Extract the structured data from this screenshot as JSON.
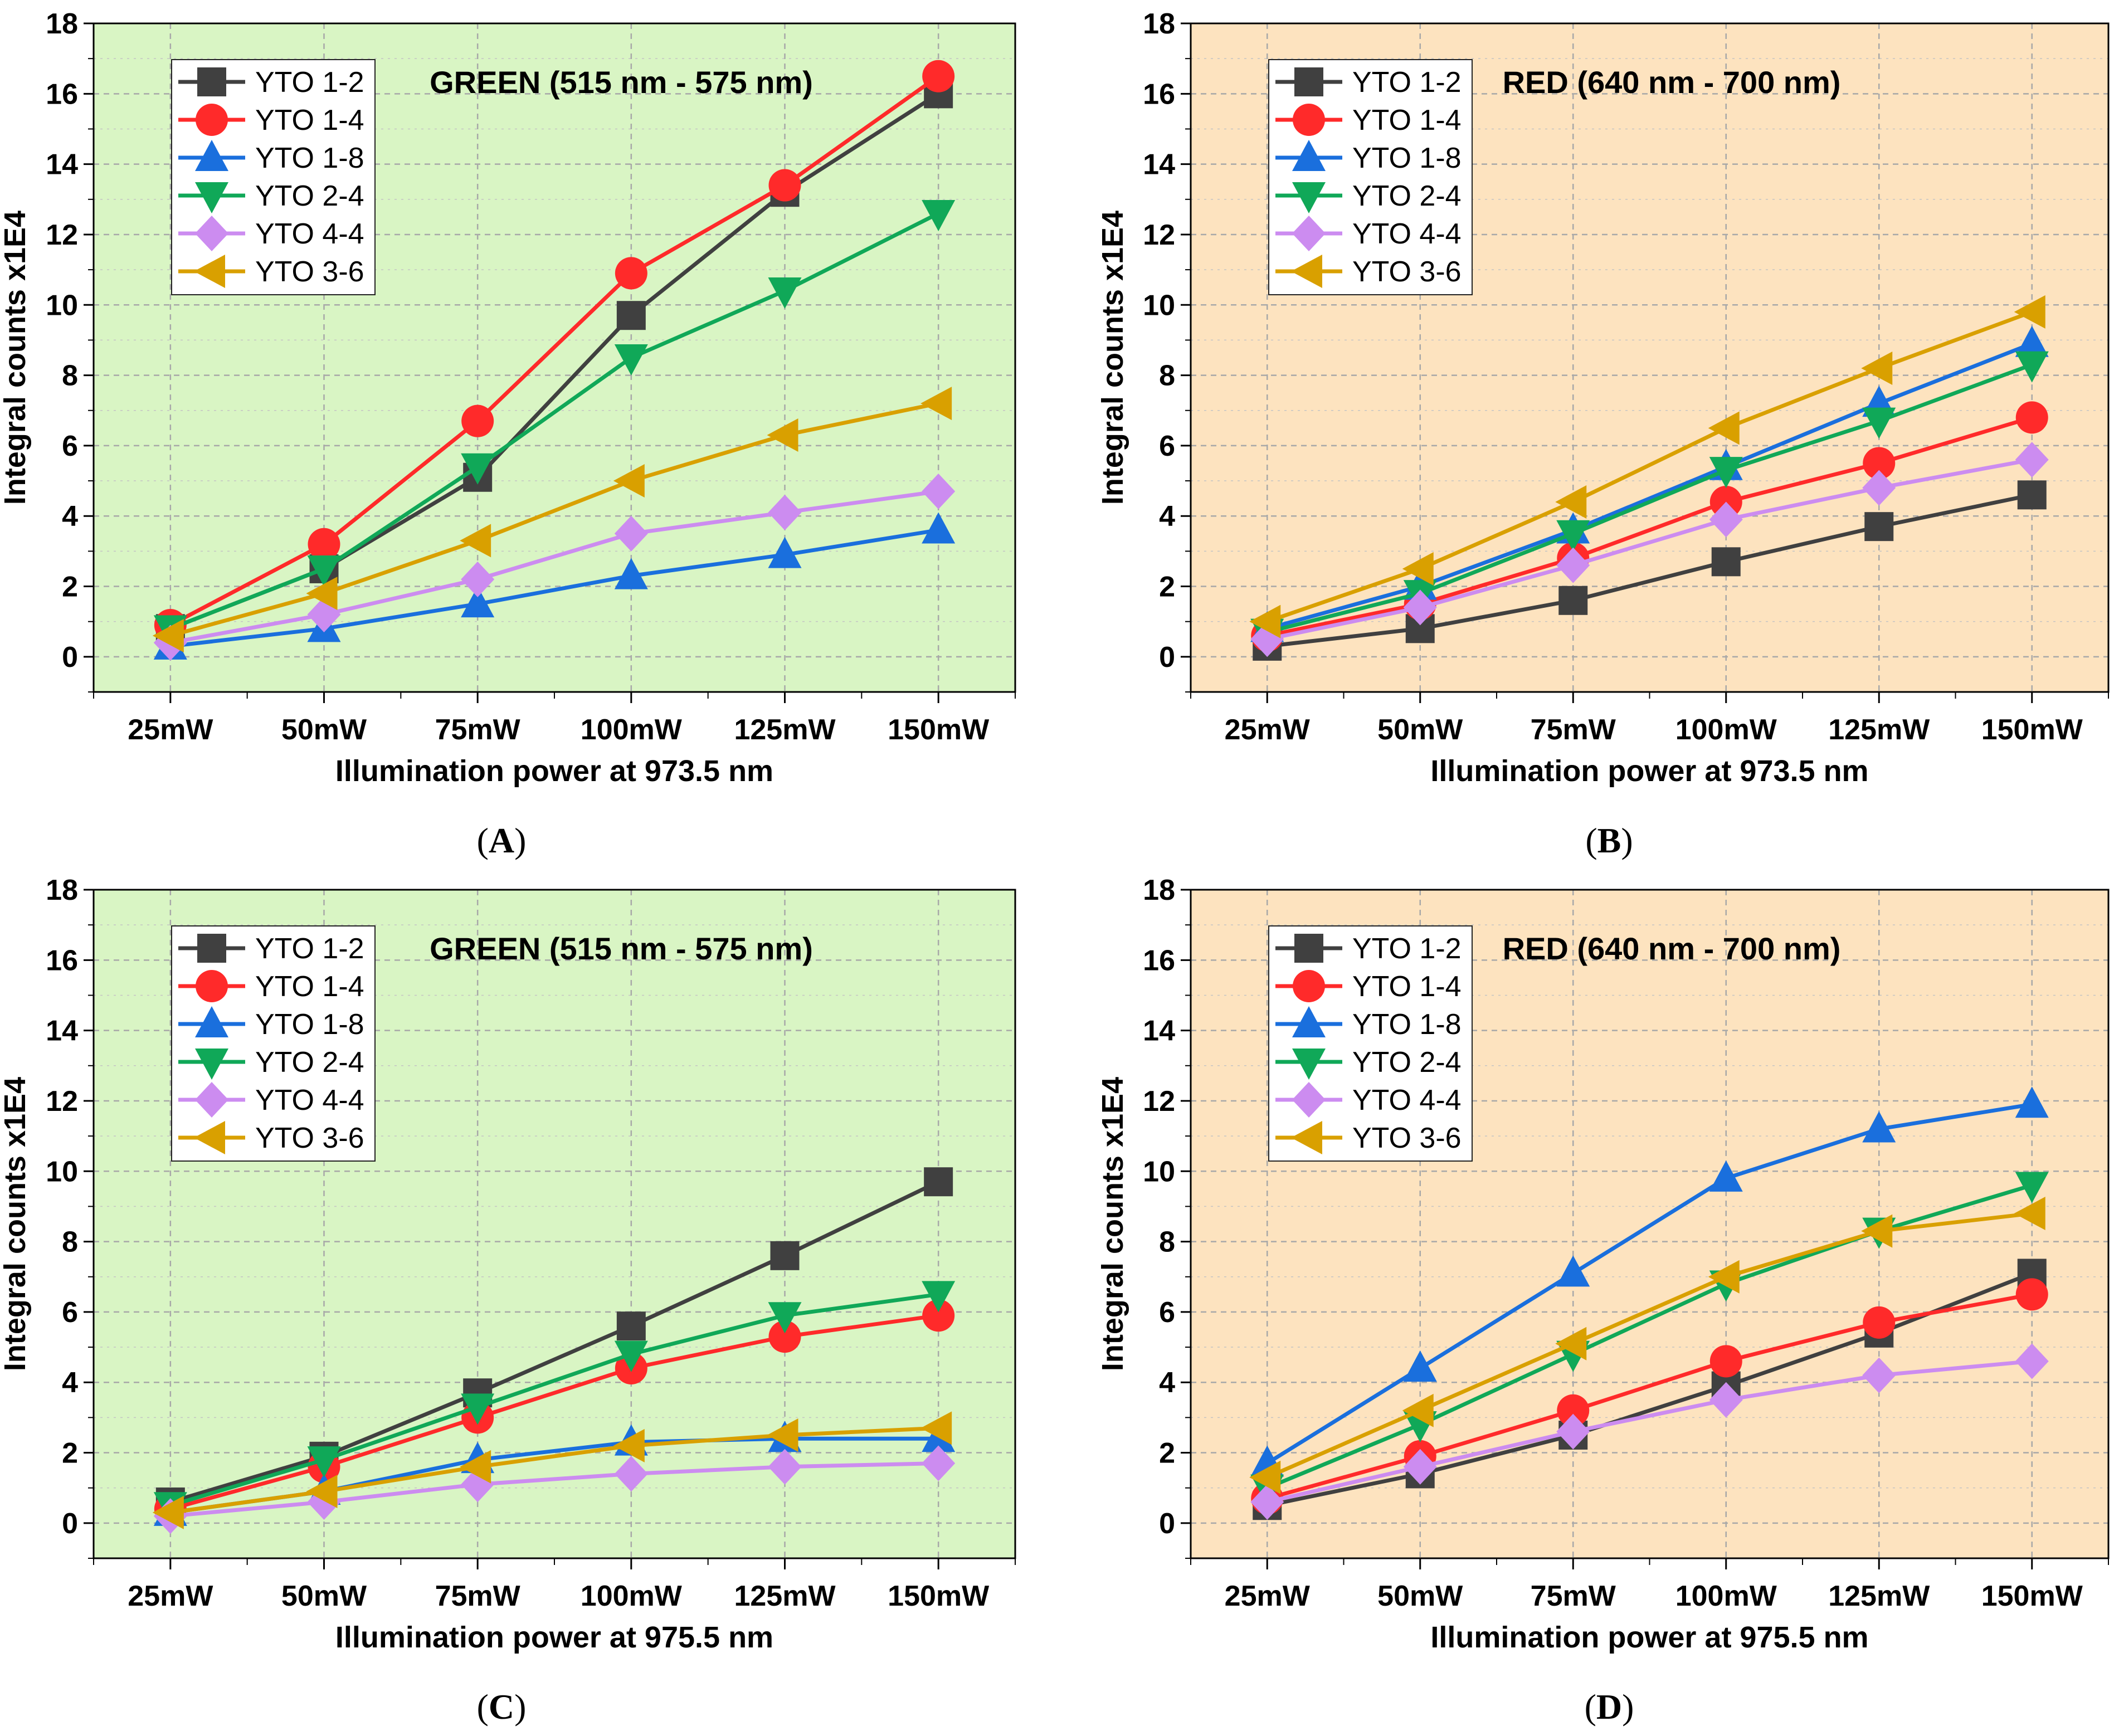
{
  "chart_data": [
    {
      "type": "line",
      "panel": "A",
      "title": "GREEN (515 nm - 575 nm)",
      "xlabel": "Illumination power at 973.5 nm",
      "ylabel": "Integral counts x1E4",
      "categories": [
        "25mW",
        "50mW",
        "75mW",
        "100mW",
        "125mW",
        "150mW"
      ],
      "ylim": [
        -1,
        18
      ],
      "yticks": [
        0,
        2,
        4,
        6,
        8,
        10,
        12,
        14,
        16,
        18
      ],
      "background": "#d9f5c4",
      "legend_position": "top-left",
      "series": [
        {
          "name": "YTO 1-2",
          "values": [
            0.8,
            2.5,
            5.1,
            9.7,
            13.2,
            16.0
          ]
        },
        {
          "name": "YTO 1-4",
          "values": [
            0.9,
            3.2,
            6.7,
            10.9,
            13.4,
            16.5
          ]
        },
        {
          "name": "YTO 1-8",
          "values": [
            0.3,
            0.8,
            1.5,
            2.3,
            2.9,
            3.6
          ]
        },
        {
          "name": "YTO 2-4",
          "values": [
            0.8,
            2.5,
            5.4,
            8.5,
            10.4,
            12.6
          ]
        },
        {
          "name": "YTO 4-4",
          "values": [
            0.4,
            1.2,
            2.2,
            3.5,
            4.1,
            4.7
          ]
        },
        {
          "name": "YTO 3-6",
          "values": [
            0.6,
            1.8,
            3.3,
            5.0,
            6.3,
            7.2
          ]
        }
      ]
    },
    {
      "type": "line",
      "panel": "B",
      "title": "RED (640 nm - 700 nm)",
      "xlabel": "Illumination power at 973.5 nm",
      "ylabel": "Integral counts x1E4",
      "categories": [
        "25mW",
        "50mW",
        "75mW",
        "100mW",
        "125mW",
        "150mW"
      ],
      "ylim": [
        -1,
        18
      ],
      "yticks": [
        0,
        2,
        4,
        6,
        8,
        10,
        12,
        14,
        16,
        18
      ],
      "background": "#fde3bf",
      "legend_position": "top-left",
      "series": [
        {
          "name": "YTO 1-2",
          "values": [
            0.3,
            0.8,
            1.6,
            2.7,
            3.7,
            4.6
          ]
        },
        {
          "name": "YTO 1-4",
          "values": [
            0.6,
            1.5,
            2.8,
            4.4,
            5.5,
            6.8
          ]
        },
        {
          "name": "YTO 1-8",
          "values": [
            0.8,
            2.0,
            3.6,
            5.4,
            7.2,
            8.9
          ]
        },
        {
          "name": "YTO 2-4",
          "values": [
            0.7,
            1.8,
            3.5,
            5.3,
            6.7,
            8.3
          ]
        },
        {
          "name": "YTO 4-4",
          "values": [
            0.5,
            1.4,
            2.6,
            3.9,
            4.8,
            5.6
          ]
        },
        {
          "name": "YTO 3-6",
          "values": [
            1.0,
            2.5,
            4.4,
            6.5,
            8.2,
            9.8
          ]
        }
      ]
    },
    {
      "type": "line",
      "panel": "C",
      "title": "GREEN (515 nm - 575 nm)",
      "xlabel": "Illumination power at 975.5 nm",
      "ylabel": "Integral counts x1E4",
      "categories": [
        "25mW",
        "50mW",
        "75mW",
        "100mW",
        "125mW",
        "150mW"
      ],
      "ylim": [
        -1,
        18
      ],
      "yticks": [
        0,
        2,
        4,
        6,
        8,
        10,
        12,
        14,
        16,
        18
      ],
      "background": "#d9f5c4",
      "legend_position": "top-left",
      "series": [
        {
          "name": "YTO 1-2",
          "values": [
            0.6,
            1.9,
            3.7,
            5.6,
            7.6,
            9.7
          ]
        },
        {
          "name": "YTO 1-4",
          "values": [
            0.4,
            1.6,
            3.0,
            4.4,
            5.3,
            5.9
          ]
        },
        {
          "name": "YTO 1-8",
          "values": [
            0.3,
            0.9,
            1.8,
            2.3,
            2.4,
            2.4
          ]
        },
        {
          "name": "YTO 2-4",
          "values": [
            0.5,
            1.8,
            3.3,
            4.8,
            5.9,
            6.5
          ]
        },
        {
          "name": "YTO 4-4",
          "values": [
            0.2,
            0.6,
            1.1,
            1.4,
            1.6,
            1.7
          ]
        },
        {
          "name": "YTO 3-6",
          "values": [
            0.3,
            0.9,
            1.6,
            2.2,
            2.5,
            2.7
          ]
        }
      ]
    },
    {
      "type": "line",
      "panel": "D",
      "title": "RED (640 nm - 700 nm)",
      "xlabel": "Illumination power at 975.5 nm",
      "ylabel": "Integral counts x1E4",
      "categories": [
        "25mW",
        "50mW",
        "75mW",
        "100mW",
        "125mW",
        "150mW"
      ],
      "ylim": [
        -1,
        18
      ],
      "yticks": [
        0,
        2,
        4,
        6,
        8,
        10,
        12,
        14,
        16,
        18
      ],
      "background": "#fde3bf",
      "legend_position": "top-left",
      "series": [
        {
          "name": "YTO 1-2",
          "values": [
            0.5,
            1.4,
            2.5,
            3.9,
            5.4,
            7.1
          ]
        },
        {
          "name": "YTO 1-4",
          "values": [
            0.7,
            1.9,
            3.2,
            4.6,
            5.7,
            6.5
          ]
        },
        {
          "name": "YTO 1-8",
          "values": [
            1.7,
            4.4,
            7.1,
            9.8,
            11.2,
            11.9
          ]
        },
        {
          "name": "YTO 2-4",
          "values": [
            1.0,
            2.8,
            4.8,
            6.8,
            8.3,
            9.6
          ]
        },
        {
          "name": "YTO 4-4",
          "values": [
            0.6,
            1.6,
            2.6,
            3.5,
            4.2,
            4.6
          ]
        },
        {
          "name": "YTO 3-6",
          "values": [
            1.3,
            3.2,
            5.1,
            7.0,
            8.3,
            8.8
          ]
        }
      ]
    }
  ],
  "series_styles": [
    {
      "color": "#404040",
      "marker": "square"
    },
    {
      "color": "#ff2a2a",
      "marker": "circle"
    },
    {
      "color": "#1a6fdd",
      "marker": "triangle-up"
    },
    {
      "color": "#10a858",
      "marker": "triangle-down"
    },
    {
      "color": "#cc8cf0",
      "marker": "diamond"
    },
    {
      "color": "#d9a000",
      "marker": "triangle-left"
    }
  ],
  "captions": {
    "A": {
      "open": "(",
      "letter": "A",
      "close": ")"
    },
    "B": {
      "open": "(",
      "letter": "B",
      "close": ")"
    },
    "C": {
      "open": "(",
      "letter": "C",
      "close": ")"
    },
    "D": {
      "open": "(",
      "letter": "D",
      "close": ")"
    }
  }
}
